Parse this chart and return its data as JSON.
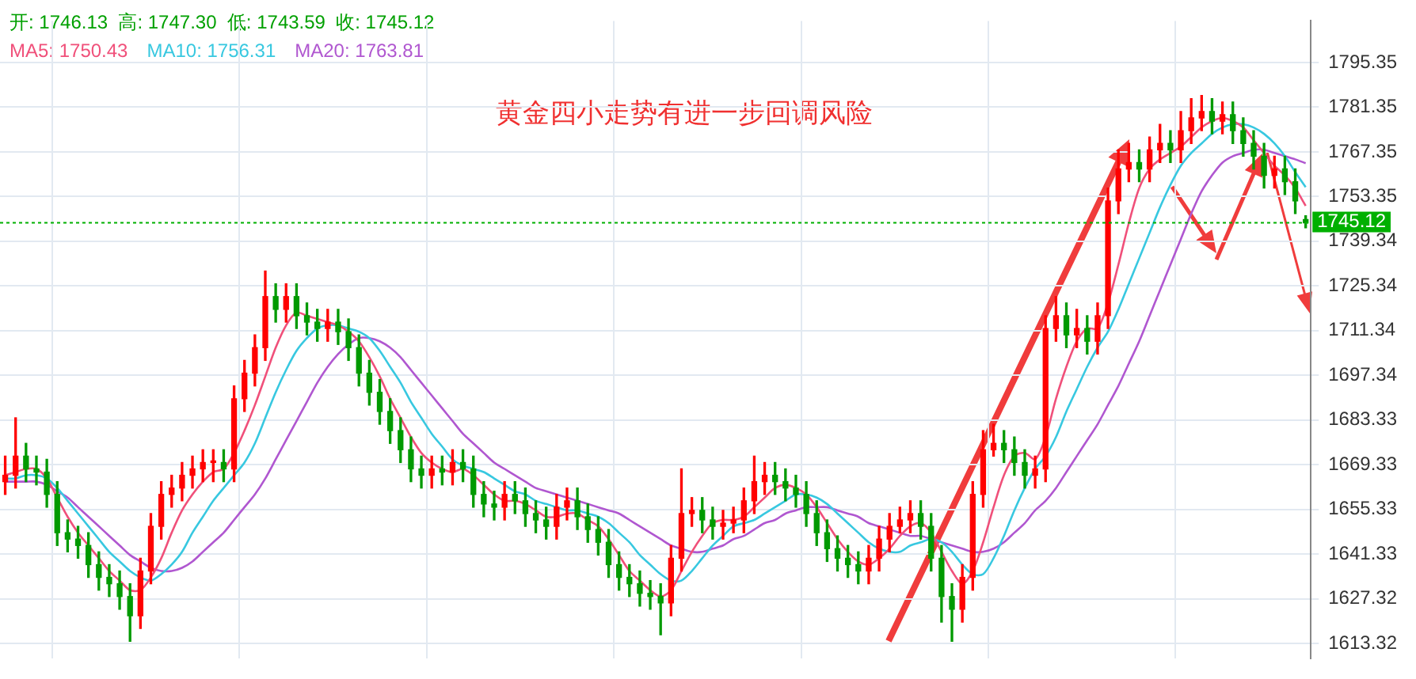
{
  "chart_data": {
    "type": "candlestick",
    "title": "黄金四小走势有进一步回调风险",
    "annotations": [
      "开: 1746.13  高: 1747.30  低: 1743.59  收: 1745.12"
    ],
    "categories": [
      null,
      null,
      null,
      null,
      null,
      null,
      null,
      null,
      null,
      null,
      null,
      null,
      null,
      null,
      null,
      null,
      null,
      null,
      null,
      null,
      null,
      null,
      null,
      null,
      null,
      null,
      null,
      null,
      null,
      null,
      null,
      null,
      null,
      null,
      null,
      null,
      null,
      null,
      null,
      null,
      null,
      null,
      null,
      null,
      null,
      null,
      null,
      null,
      null,
      null,
      null,
      null,
      null,
      null,
      null,
      null,
      null,
      null,
      null,
      null,
      null,
      null,
      null,
      null,
      null,
      null,
      null,
      null,
      null,
      null,
      null,
      null,
      null,
      null,
      null,
      null,
      null,
      null,
      null,
      null,
      null,
      null,
      null,
      null,
      null,
      null,
      null,
      null,
      null,
      null,
      null,
      null,
      null,
      null,
      null,
      null,
      null,
      null,
      null,
      null,
      null,
      null,
      null,
      null,
      null,
      null,
      null,
      null,
      null,
      null,
      null,
      null,
      null,
      null,
      null,
      null,
      null,
      null,
      null,
      null,
      null,
      null,
      null,
      null,
      null,
      null
    ],
    "ohlc": [
      [
        1664,
        1672,
        1660,
        1666
      ],
      [
        1666,
        1684,
        1662,
        1672
      ],
      [
        1672,
        1676,
        1664,
        1668
      ],
      [
        1668,
        1672,
        1663,
        1667
      ],
      [
        1667,
        1671,
        1656,
        1660
      ],
      [
        1660,
        1664,
        1644,
        1648
      ],
      [
        1648,
        1652,
        1642,
        1646
      ],
      [
        1646,
        1650,
        1640,
        1644
      ],
      [
        1644,
        1648,
        1634,
        1638
      ],
      [
        1638,
        1642,
        1630,
        1634
      ],
      [
        1634,
        1638,
        1628,
        1632
      ],
      [
        1632,
        1636,
        1624,
        1628
      ],
      [
        1628,
        1632,
        1614,
        1622
      ],
      [
        1622,
        1640,
        1618,
        1636
      ],
      [
        1636,
        1654,
        1632,
        1650
      ],
      [
        1650,
        1664,
        1646,
        1660
      ],
      [
        1660,
        1666,
        1656,
        1662
      ],
      [
        1662,
        1670,
        1658,
        1666
      ],
      [
        1666,
        1672,
        1662,
        1668
      ],
      [
        1668,
        1674,
        1664,
        1670
      ],
      [
        1670,
        1674,
        1664,
        1670
      ],
      [
        1670,
        1674,
        1664,
        1668
      ],
      [
        1668,
        1694,
        1664,
        1690
      ],
      [
        1690,
        1702,
        1686,
        1698
      ],
      [
        1698,
        1710,
        1694,
        1706
      ],
      [
        1706,
        1730,
        1702,
        1722
      ],
      [
        1722,
        1726,
        1714,
        1718
      ],
      [
        1718,
        1726,
        1714,
        1722
      ],
      [
        1722,
        1726,
        1712,
        1716
      ],
      [
        1716,
        1720,
        1710,
        1714
      ],
      [
        1714,
        1718,
        1708,
        1712
      ],
      [
        1712,
        1718,
        1708,
        1714
      ],
      [
        1714,
        1718,
        1707,
        1711
      ],
      [
        1711,
        1715,
        1702,
        1706
      ],
      [
        1706,
        1710,
        1694,
        1698
      ],
      [
        1698,
        1702,
        1688,
        1692
      ],
      [
        1692,
        1696,
        1682,
        1686
      ],
      [
        1686,
        1690,
        1676,
        1680
      ],
      [
        1680,
        1684,
        1670,
        1674
      ],
      [
        1674,
        1678,
        1664,
        1668
      ],
      [
        1668,
        1672,
        1662,
        1666
      ],
      [
        1666,
        1672,
        1662,
        1668
      ],
      [
        1668,
        1672,
        1663,
        1667
      ],
      [
        1667,
        1674,
        1663,
        1670
      ],
      [
        1670,
        1674,
        1664,
        1668
      ],
      [
        1668,
        1672,
        1656,
        1660
      ],
      [
        1660,
        1664,
        1653,
        1657
      ],
      [
        1657,
        1661,
        1652,
        1656
      ],
      [
        1656,
        1664,
        1652,
        1660
      ],
      [
        1660,
        1664,
        1654,
        1658
      ],
      [
        1658,
        1662,
        1650,
        1654
      ],
      [
        1654,
        1658,
        1648,
        1652
      ],
      [
        1652,
        1656,
        1646,
        1650
      ],
      [
        1650,
        1660,
        1646,
        1656
      ],
      [
        1656,
        1662,
        1652,
        1658
      ],
      [
        1658,
        1662,
        1649,
        1653
      ],
      [
        1653,
        1657,
        1645,
        1649
      ],
      [
        1649,
        1653,
        1641,
        1645
      ],
      [
        1645,
        1649,
        1634,
        1638
      ],
      [
        1638,
        1642,
        1630,
        1634
      ],
      [
        1634,
        1638,
        1628,
        1632
      ],
      [
        1632,
        1636,
        1625,
        1629
      ],
      [
        1629,
        1633,
        1624,
        1628
      ],
      [
        1628,
        1632,
        1616,
        1626
      ],
      [
        1626,
        1644,
        1622,
        1640
      ],
      [
        1640,
        1668,
        1636,
        1654
      ],
      [
        1654,
        1659,
        1650,
        1655
      ],
      [
        1655,
        1659,
        1648,
        1652
      ],
      [
        1652,
        1656,
        1646,
        1650
      ],
      [
        1650,
        1655,
        1646,
        1651
      ],
      [
        1651,
        1656,
        1648,
        1652
      ],
      [
        1652,
        1662,
        1648,
        1658
      ],
      [
        1658,
        1672,
        1654,
        1664
      ],
      [
        1664,
        1670,
        1660,
        1666
      ],
      [
        1666,
        1670,
        1660,
        1664
      ],
      [
        1664,
        1668,
        1658,
        1662
      ],
      [
        1662,
        1666,
        1656,
        1660
      ],
      [
        1660,
        1664,
        1650,
        1654
      ],
      [
        1654,
        1658,
        1644,
        1648
      ],
      [
        1648,
        1652,
        1639,
        1643
      ],
      [
        1643,
        1647,
        1636,
        1640
      ],
      [
        1640,
        1644,
        1634,
        1638
      ],
      [
        1638,
        1642,
        1632,
        1636
      ],
      [
        1636,
        1644,
        1632,
        1640
      ],
      [
        1640,
        1650,
        1636,
        1646
      ],
      [
        1646,
        1654,
        1642,
        1650
      ],
      [
        1650,
        1656,
        1648,
        1652
      ],
      [
        1652,
        1658,
        1648,
        1654
      ],
      [
        1654,
        1658,
        1646,
        1650
      ],
      [
        1650,
        1654,
        1636,
        1640
      ],
      [
        1640,
        1644,
        1620,
        1628
      ],
      [
        1628,
        1632,
        1614,
        1624
      ],
      [
        1624,
        1638,
        1620,
        1634
      ],
      [
        1634,
        1664,
        1630,
        1660
      ],
      [
        1660,
        1680,
        1656,
        1674
      ],
      [
        1674,
        1682,
        1672,
        1676
      ],
      [
        1676,
        1680,
        1670,
        1674
      ],
      [
        1674,
        1678,
        1666,
        1670
      ],
      [
        1670,
        1674,
        1662,
        1666
      ],
      [
        1666,
        1672,
        1662,
        1668
      ],
      [
        1668,
        1716,
        1664,
        1712
      ],
      [
        1712,
        1722,
        1708,
        1716
      ],
      [
        1716,
        1720,
        1706,
        1710
      ],
      [
        1710,
        1718,
        1706,
        1712
      ],
      [
        1712,
        1716,
        1704,
        1708
      ],
      [
        1708,
        1720,
        1704,
        1716
      ],
      [
        1716,
        1756,
        1712,
        1752
      ],
      [
        1752,
        1768,
        1748,
        1762
      ],
      [
        1762,
        1770,
        1758,
        1764
      ],
      [
        1764,
        1768,
        1758,
        1762
      ],
      [
        1762,
        1772,
        1758,
        1768
      ],
      [
        1768,
        1776,
        1764,
        1770
      ],
      [
        1770,
        1774,
        1764,
        1768
      ],
      [
        1768,
        1780,
        1764,
        1774
      ],
      [
        1774,
        1784,
        1770,
        1778
      ],
      [
        1778,
        1785,
        1774,
        1780
      ],
      [
        1780,
        1784,
        1773,
        1777
      ],
      [
        1777,
        1783,
        1773,
        1779
      ],
      [
        1779,
        1783,
        1770,
        1774
      ],
      [
        1774,
        1778,
        1766,
        1770
      ],
      [
        1770,
        1774,
        1762,
        1766
      ],
      [
        1766,
        1770,
        1756,
        1760
      ],
      [
        1760,
        1766,
        1756,
        1762
      ],
      [
        1762,
        1766,
        1754,
        1758
      ],
      [
        1758,
        1762,
        1748,
        1752
      ],
      [
        1746.13,
        1747.3,
        1743.59,
        1745.12
      ]
    ],
    "series": [
      {
        "name": "MA5: 1750.43",
        "type": "line",
        "color": "#f0507a",
        "values": [
          1666,
          1667,
          1668,
          1668,
          1665,
          1659,
          1653,
          1648,
          1644,
          1640,
          1636,
          1633,
          1630,
          1630,
          1634,
          1640,
          1648,
          1655,
          1660,
          1664,
          1667,
          1668,
          1673,
          1680,
          1688,
          1697,
          1706,
          1713,
          1717,
          1716,
          1715,
          1714,
          1713,
          1711,
          1708,
          1703,
          1697,
          1690,
          1684,
          1678,
          1673,
          1670,
          1668,
          1667,
          1668,
          1666,
          1663,
          1660,
          1658,
          1658,
          1657,
          1655,
          1653,
          1653,
          1654,
          1654,
          1652,
          1650,
          1646,
          1641,
          1636,
          1633,
          1630,
          1628,
          1630,
          1636,
          1642,
          1647,
          1651,
          1652,
          1652,
          1653,
          1656,
          1659,
          1662,
          1663,
          1662,
          1660,
          1656,
          1651,
          1646,
          1642,
          1639,
          1638,
          1640,
          1643,
          1647,
          1650,
          1651,
          1648,
          1642,
          1636,
          1632,
          1636,
          1645,
          1656,
          1666,
          1672,
          1673,
          1671,
          1678,
          1690,
          1700,
          1708,
          1712,
          1712,
          1720,
          1732,
          1745,
          1756,
          1762,
          1765,
          1767,
          1769,
          1772,
          1775,
          1777,
          1778,
          1777,
          1775,
          1771,
          1767,
          1763,
          1760,
          1756,
          1750.43
        ]
      },
      {
        "name": "MA10: 1756.31",
        "type": "line",
        "color": "#38c8e0",
        "values": [
          1665,
          1665,
          1666,
          1666,
          1665,
          1662,
          1658,
          1654,
          1650,
          1646,
          1642,
          1639,
          1636,
          1634,
          1633,
          1635,
          1638,
          1642,
          1648,
          1653,
          1658,
          1662,
          1666,
          1670,
          1676,
          1684,
          1692,
          1699,
          1705,
          1709,
          1712,
          1713,
          1713,
          1712,
          1711,
          1709,
          1705,
          1700,
          1695,
          1689,
          1684,
          1679,
          1675,
          1671,
          1669,
          1668,
          1667,
          1665,
          1663,
          1661,
          1660,
          1658,
          1657,
          1656,
          1655,
          1655,
          1654,
          1653,
          1651,
          1648,
          1645,
          1641,
          1638,
          1635,
          1633,
          1633,
          1636,
          1640,
          1644,
          1647,
          1650,
          1651,
          1652,
          1654,
          1656,
          1658,
          1660,
          1660,
          1659,
          1657,
          1654,
          1651,
          1648,
          1645,
          1643,
          1642,
          1642,
          1644,
          1645,
          1646,
          1645,
          1642,
          1638,
          1635,
          1635,
          1640,
          1647,
          1655,
          1662,
          1668,
          1672,
          1678,
          1686,
          1693,
          1700,
          1706,
          1711,
          1718,
          1726,
          1734,
          1742,
          1750,
          1757,
          1763,
          1767,
          1770,
          1773,
          1775,
          1776,
          1776,
          1775,
          1773,
          1770,
          1766,
          1761,
          1756.31
        ]
      },
      {
        "name": "MA20: 1763.81",
        "type": "line",
        "color": "#b057d0",
        "values": [
          1664,
          1664,
          1664,
          1664,
          1663,
          1661,
          1659,
          1656,
          1653,
          1650,
          1647,
          1644,
          1641,
          1639,
          1637,
          1636,
          1636,
          1637,
          1639,
          1642,
          1645,
          1648,
          1652,
          1656,
          1660,
          1665,
          1671,
          1677,
          1683,
          1689,
          1695,
          1700,
          1704,
          1707,
          1709,
          1709,
          1708,
          1706,
          1703,
          1699,
          1695,
          1691,
          1687,
          1683,
          1679,
          1676,
          1673,
          1670,
          1668,
          1666,
          1664,
          1662,
          1661,
          1660,
          1659,
          1658,
          1657,
          1656,
          1655,
          1654,
          1652,
          1650,
          1648,
          1646,
          1644,
          1643,
          1642,
          1642,
          1643,
          1644,
          1646,
          1647,
          1649,
          1651,
          1652,
          1654,
          1655,
          1656,
          1656,
          1656,
          1655,
          1654,
          1653,
          1651,
          1650,
          1649,
          1648,
          1647,
          1647,
          1646,
          1645,
          1644,
          1643,
          1642,
          1642,
          1643,
          1645,
          1648,
          1651,
          1655,
          1658,
          1662,
          1667,
          1672,
          1677,
          1682,
          1688,
          1694,
          1701,
          1708,
          1716,
          1724,
          1732,
          1740,
          1748,
          1755,
          1760,
          1764,
          1766,
          1767,
          1768,
          1768,
          1767,
          1766,
          1765,
          1763.81
        ]
      }
    ],
    "ylim": [
      1608.7,
      1808.4
    ],
    "yticks": [
      1613.32,
      1627.32,
      1641.33,
      1655.33,
      1669.33,
      1683.33,
      1697.34,
      1711.34,
      1725.34,
      1739.34,
      1753.35,
      1767.35,
      1781.35,
      1795.35
    ],
    "ref_lines": [
      {
        "axis": "y",
        "value": 1745.12,
        "label": "1745.12",
        "color": "#00b000",
        "line_style": "dotted"
      }
    ],
    "grid": true,
    "legend": "top left",
    "tick_labels": "y"
  }
}
